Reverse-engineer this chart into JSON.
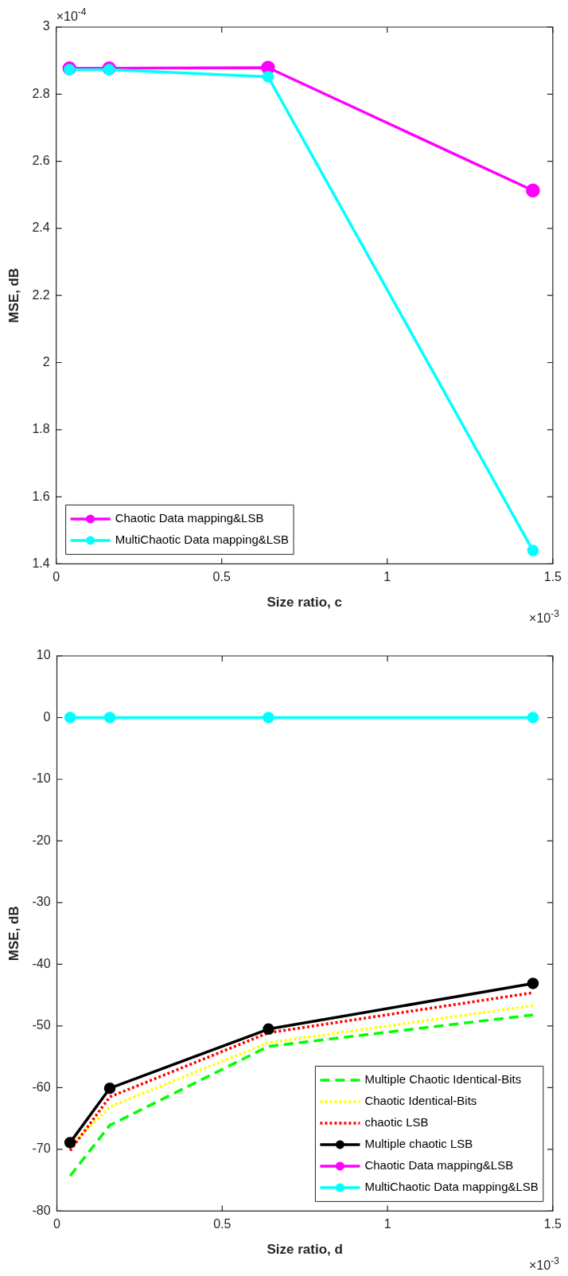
{
  "chart_data": [
    {
      "type": "line",
      "xlabel": "Size ratio, c",
      "ylabel": "MSE, dB",
      "x": [
        0.04,
        0.16,
        0.64,
        1.44
      ],
      "series": [
        {
          "name": "Chaotic Data mapping&LSB",
          "color": "#ff00ff",
          "values": [
            2.877,
            2.877,
            2.879,
            2.513
          ],
          "marker": "circle",
          "line_style": "solid"
        },
        {
          "name": "MultiChaotic Data mapping&LSB",
          "color": "#00ffff",
          "values": [
            2.873,
            2.873,
            2.852,
            1.44
          ],
          "marker": "circle",
          "line_style": "solid"
        }
      ],
      "xlim": [
        0,
        1.5
      ],
      "xticks": [
        0,
        0.5,
        1,
        1.5
      ],
      "ylim": [
        1.4,
        3
      ],
      "yticks": [
        1.4,
        1.6,
        1.8,
        2,
        2.2,
        2.4,
        2.6,
        2.8,
        3
      ],
      "annotations": [
        "×10$^{-4}$",
        "×10$^{-3}$"
      ],
      "legend": "bottom left",
      "grid": false
    },
    {
      "type": "line",
      "xlabel": "Size ratio, d",
      "ylabel": "MSE, dB",
      "x": [
        0.04,
        0.16,
        0.64,
        1.44
      ],
      "series": [
        {
          "name": "Multiple Chaotic Identical-Bits",
          "color": "#00ff00",
          "values": [
            -74.3,
            -66.1,
            -53.3,
            -48.2
          ],
          "marker": "none",
          "line_style": "dashed"
        },
        {
          "name": "Chaotic Identical-Bits",
          "color": "#ffff00",
          "values": [
            -69.5,
            -63.1,
            -52.7,
            -46.7
          ],
          "marker": "none",
          "line_style": "dotted"
        },
        {
          "name": "chaotic LSB",
          "color": "#ff0000",
          "values": [
            -70.2,
            -61.5,
            -51.1,
            -44.6
          ],
          "marker": "none",
          "line_style": "dotted"
        },
        {
          "name": "Multiple chaotic LSB",
          "color": "#000000",
          "values": [
            -68.9,
            -60.1,
            -50.5,
            -43.1
          ],
          "marker": "circle",
          "line_style": "solid"
        },
        {
          "name": "Chaotic Data mapping&LSB",
          "color": "#ff00ff",
          "values": [
            null,
            null,
            null,
            null
          ],
          "marker": "circle",
          "line_style": "solid"
        },
        {
          "name": "MultiChaotic Data mapping&LSB",
          "color": "#00ffff",
          "values": [
            0,
            0,
            0,
            0
          ],
          "marker": "circle",
          "line_style": "solid"
        }
      ],
      "xlim": [
        0,
        1.5
      ],
      "xticks": [
        0,
        0.5,
        1,
        1.5
      ],
      "ylim": [
        -80,
        10
      ],
      "yticks": [
        -80,
        -70,
        -60,
        -50,
        -40,
        -30,
        -20,
        -10,
        0,
        10
      ],
      "annotations": [
        "×10$^{-3}$"
      ],
      "legend": "bottom right",
      "grid": false
    }
  ]
}
